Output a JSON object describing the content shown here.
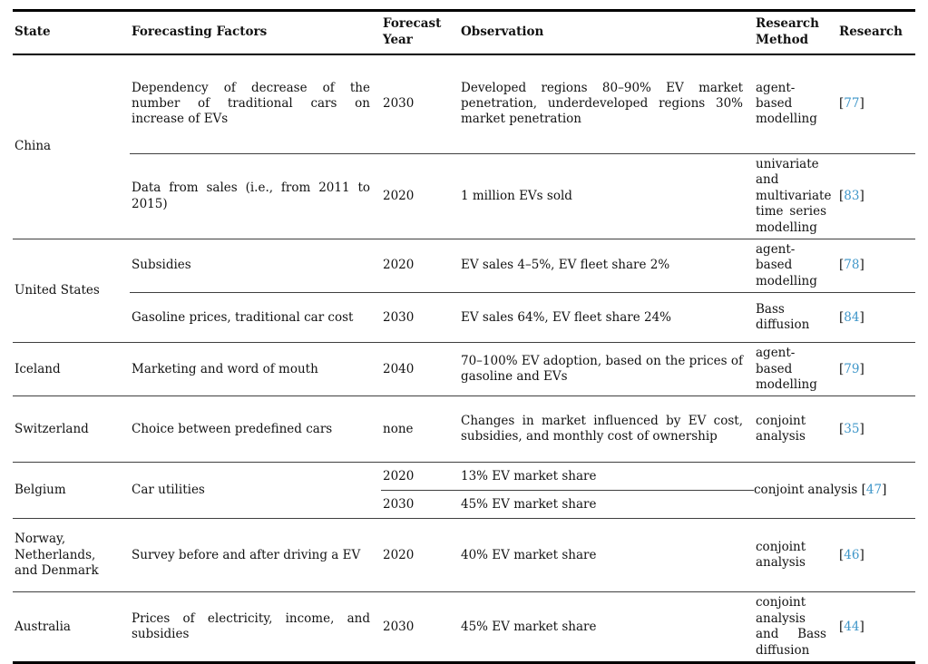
{
  "meta": {
    "citation_color": "#3E96C9",
    "text_color": "#121212",
    "rule_color": "#000000"
  },
  "punct": {
    "open": "[",
    "close": "]"
  },
  "header": {
    "state": "State",
    "factors": "Forecasting Factors",
    "year": "Forecast Year",
    "observation": "Observation",
    "method": "Research Method",
    "research": "Research"
  },
  "rows": {
    "china": {
      "state": "China",
      "r1": {
        "factors": "Dependency of decrease of the number of traditional cars on increase of EVs",
        "year": "2030",
        "observation": "Developed regions 80–90% EV market penetration, underdeveloped regions 30% market penetration",
        "method": "agent-based modelling",
        "cite": "77"
      },
      "r2": {
        "factors": "Data from sales (i.e., from 2011 to 2015)",
        "year": "2020",
        "observation": "1 million EVs sold",
        "method": "univariate and multivariate time series modelling",
        "cite": "83"
      }
    },
    "united_states": {
      "state": "United States",
      "r1": {
        "factors": "Subsidies",
        "year": "2020",
        "observation": "EV sales 4–5%, EV fleet share 2%",
        "method": "agent-based modelling",
        "cite": "78"
      },
      "r2": {
        "factors": "Gasoline prices, traditional car cost",
        "year": "2030",
        "observation": "EV sales 64%, EV fleet share 24%",
        "method": "Bass diffusion",
        "cite": "84"
      }
    },
    "iceland": {
      "state": "Iceland",
      "factors": "Marketing and word of mouth",
      "year": "2040",
      "observation": "70–100% EV adoption, based on the prices of gasoline and EVs",
      "method": "agent-based modelling",
      "cite": "79"
    },
    "switzerland": {
      "state": "Switzerland",
      "factors": "Choice between predefined cars",
      "year": "none",
      "observation": "Changes in market influenced by EV cost, subsidies, and monthly cost of ownership",
      "method": "conjoint analysis",
      "cite": "35"
    },
    "belgium": {
      "state": "Belgium",
      "factors": "Car utilities",
      "r1": {
        "year": "2020",
        "observation": "13% EV market share"
      },
      "r2": {
        "year": "2030",
        "observation": "45% EV market share"
      },
      "method": "conjoint analysis",
      "cite": "47"
    },
    "norway_group": {
      "state": "Norway, Netherlands, and Denmark",
      "factors": "Survey before and after driving a EV",
      "year": "2020",
      "observation": "40% EV market share",
      "method": "conjoint analysis",
      "cite": "46"
    },
    "australia": {
      "state": "Australia",
      "factors": "Prices of electricity, income, and subsidies",
      "year": "2030",
      "observation": "45% EV market share",
      "method": "conjoint analysis and Bass diffusion",
      "cite": "44"
    }
  }
}
